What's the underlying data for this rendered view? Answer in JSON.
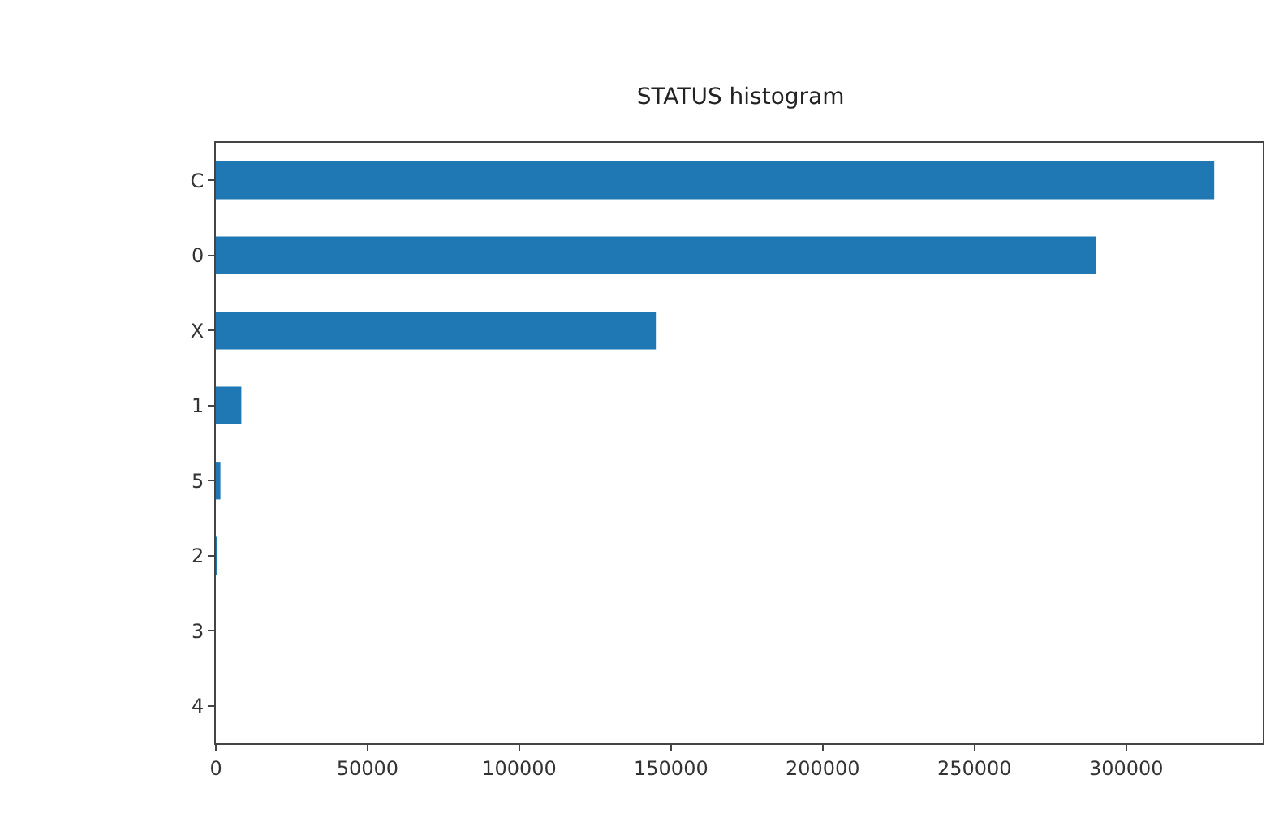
{
  "chart_data": {
    "type": "bar",
    "orientation": "horizontal",
    "title": "STATUS histogram",
    "categories": [
      "C",
      "0",
      "X",
      "1",
      "5",
      "2",
      "3",
      "4"
    ],
    "values": [
      329000,
      290000,
      145000,
      8400,
      1500,
      500,
      0,
      0
    ],
    "color": "#1f77b4",
    "xlim": [
      0,
      345000
    ],
    "xticks": [
      0,
      50000,
      100000,
      150000,
      200000,
      250000,
      300000
    ],
    "grid": false
  }
}
